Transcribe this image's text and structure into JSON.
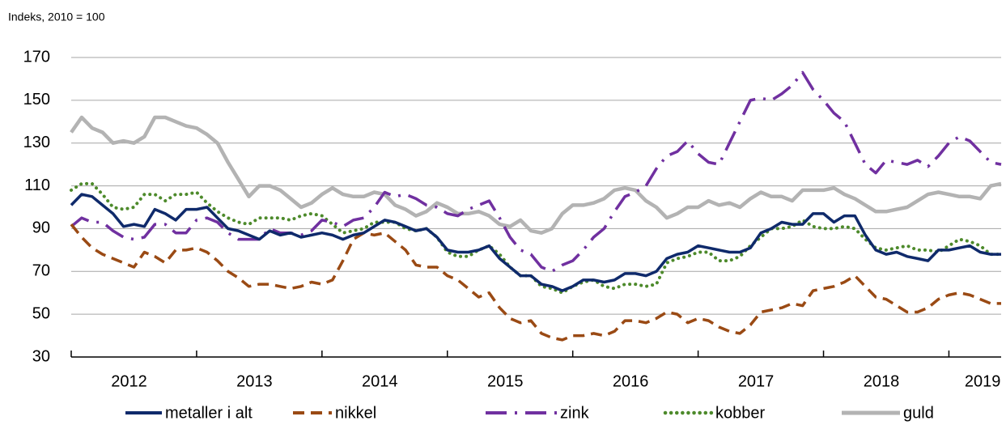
{
  "chart_data": {
    "type": "line",
    "ylabel": "Indeks, 2010 = 100",
    "categories": [
      null,
      null,
      null,
      null,
      null,
      null,
      "2012",
      null,
      null,
      null,
      null,
      null,
      null,
      null,
      null,
      null,
      null,
      null,
      "2013",
      null,
      null,
      null,
      null,
      null,
      null,
      null,
      null,
      null,
      null,
      null,
      "2014",
      null,
      null,
      null,
      null,
      null,
      null,
      null,
      null,
      null,
      null,
      null,
      "2015",
      null,
      null,
      null,
      null,
      null,
      null,
      null,
      null,
      null,
      null,
      null,
      "2016",
      null,
      null,
      null,
      null,
      null,
      null,
      null,
      null,
      null,
      null,
      null,
      "2017",
      null,
      null,
      null,
      null,
      null,
      null,
      null,
      null,
      null,
      null,
      null,
      "2018",
      null,
      null,
      null,
      null,
      null,
      null,
      null,
      null,
      "2019",
      null,
      null
    ],
    "ylim": [
      30,
      170
    ],
    "yticks": [
      30,
      50,
      70,
      90,
      110,
      130,
      150,
      170
    ],
    "grid": true,
    "series": [
      {
        "name": "metaller i alt",
        "color": "#0f2a6b",
        "style": "solid",
        "values": [
          101,
          106,
          105,
          101,
          97,
          91,
          92,
          91,
          99,
          97,
          94,
          99,
          99,
          100,
          95,
          90,
          89,
          87,
          85,
          89,
          87,
          88,
          86,
          87,
          88,
          87,
          85,
          87,
          88,
          91,
          94,
          93,
          91,
          89,
          90,
          86,
          80,
          79,
          79,
          80,
          82,
          76,
          72,
          68,
          68,
          64,
          63,
          61,
          63,
          66,
          66,
          65,
          66,
          69,
          69,
          68,
          70,
          76,
          78,
          79,
          82,
          81,
          80,
          79,
          79,
          81,
          88,
          90,
          93,
          92,
          92,
          97,
          97,
          93,
          96,
          96,
          87,
          80,
          78,
          79,
          77,
          76,
          75,
          80,
          80,
          81,
          82,
          79,
          78,
          78
        ]
      },
      {
        "name": "nikkel",
        "color": "#9a4a14",
        "style": "dashed",
        "values": [
          92,
          86,
          81,
          78,
          76,
          74,
          72,
          79,
          77,
          74,
          80,
          80,
          81,
          79,
          75,
          70,
          67,
          63,
          64,
          64,
          63,
          62,
          63,
          65,
          64,
          66,
          75,
          85,
          88,
          87,
          88,
          84,
          80,
          73,
          72,
          72,
          68,
          66,
          62,
          58,
          60,
          53,
          48,
          46,
          47,
          41,
          39,
          38,
          40,
          40,
          41,
          40,
          42,
          47,
          47,
          46,
          48,
          51,
          50,
          46,
          48,
          47,
          44,
          42,
          41,
          45,
          51,
          52,
          53,
          55,
          54,
          61,
          62,
          63,
          65,
          68,
          63,
          58,
          57,
          54,
          51,
          51,
          53,
          57,
          59,
          60,
          59,
          57,
          55,
          55
        ]
      },
      {
        "name": "zink",
        "color": "#7030a0",
        "style": "dashdot",
        "values": [
          91,
          95,
          93,
          93,
          89,
          86,
          85,
          86,
          92,
          92,
          88,
          88,
          94,
          95,
          93,
          88,
          85,
          85,
          85,
          90,
          88,
          88,
          87,
          89,
          94,
          93,
          91,
          94,
          95,
          100,
          107,
          105,
          106,
          104,
          101,
          100,
          97,
          96,
          99,
          101,
          103,
          95,
          86,
          80,
          78,
          72,
          70,
          73,
          75,
          80,
          86,
          90,
          98,
          105,
          107,
          110,
          118,
          124,
          126,
          131,
          125,
          121,
          120,
          130,
          140,
          150,
          151,
          150,
          153,
          157,
          163,
          155,
          150,
          144,
          140,
          130,
          120,
          116,
          122,
          121,
          120,
          122,
          119,
          124,
          130,
          133,
          131,
          126,
          121,
          120
        ]
      },
      {
        "name": "kobber",
        "color": "#4d8a2b",
        "style": "dotted",
        "values": [
          108,
          111,
          111,
          106,
          100,
          99,
          100,
          106,
          106,
          103,
          106,
          106,
          107,
          102,
          98,
          95,
          93,
          92,
          95,
          95,
          95,
          94,
          96,
          97,
          96,
          92,
          88,
          89,
          90,
          93,
          93,
          93,
          90,
          89,
          90,
          86,
          79,
          77,
          77,
          80,
          82,
          78,
          72,
          68,
          68,
          63,
          62,
          60,
          63,
          65,
          66,
          63,
          62,
          64,
          64,
          63,
          64,
          74,
          76,
          77,
          79,
          79,
          75,
          75,
          77,
          82,
          86,
          90,
          90,
          91,
          94,
          91,
          90,
          90,
          91,
          90,
          85,
          81,
          80,
          81,
          82,
          80,
          80,
          79,
          82,
          85,
          84,
          82,
          78,
          78
        ]
      },
      {
        "name": "guld",
        "color": "#b3b3b3",
        "style": "solid",
        "values": [
          135,
          142,
          137,
          135,
          130,
          131,
          130,
          133,
          142,
          142,
          140,
          138,
          137,
          134,
          130,
          121,
          113,
          105,
          110,
          110,
          108,
          104,
          100,
          102,
          106,
          109,
          106,
          105,
          105,
          107,
          106,
          101,
          99,
          96,
          98,
          102,
          100,
          97,
          97,
          98,
          96,
          92,
          91,
          94,
          89,
          88,
          90,
          97,
          101,
          101,
          102,
          104,
          108,
          109,
          108,
          103,
          100,
          95,
          97,
          100,
          100,
          103,
          101,
          102,
          100,
          104,
          107,
          105,
          105,
          103,
          108,
          108,
          108,
          109,
          106,
          104,
          101,
          98,
          98,
          99,
          100,
          103,
          106,
          107,
          106,
          105,
          105,
          104,
          110,
          111
        ]
      }
    ]
  }
}
